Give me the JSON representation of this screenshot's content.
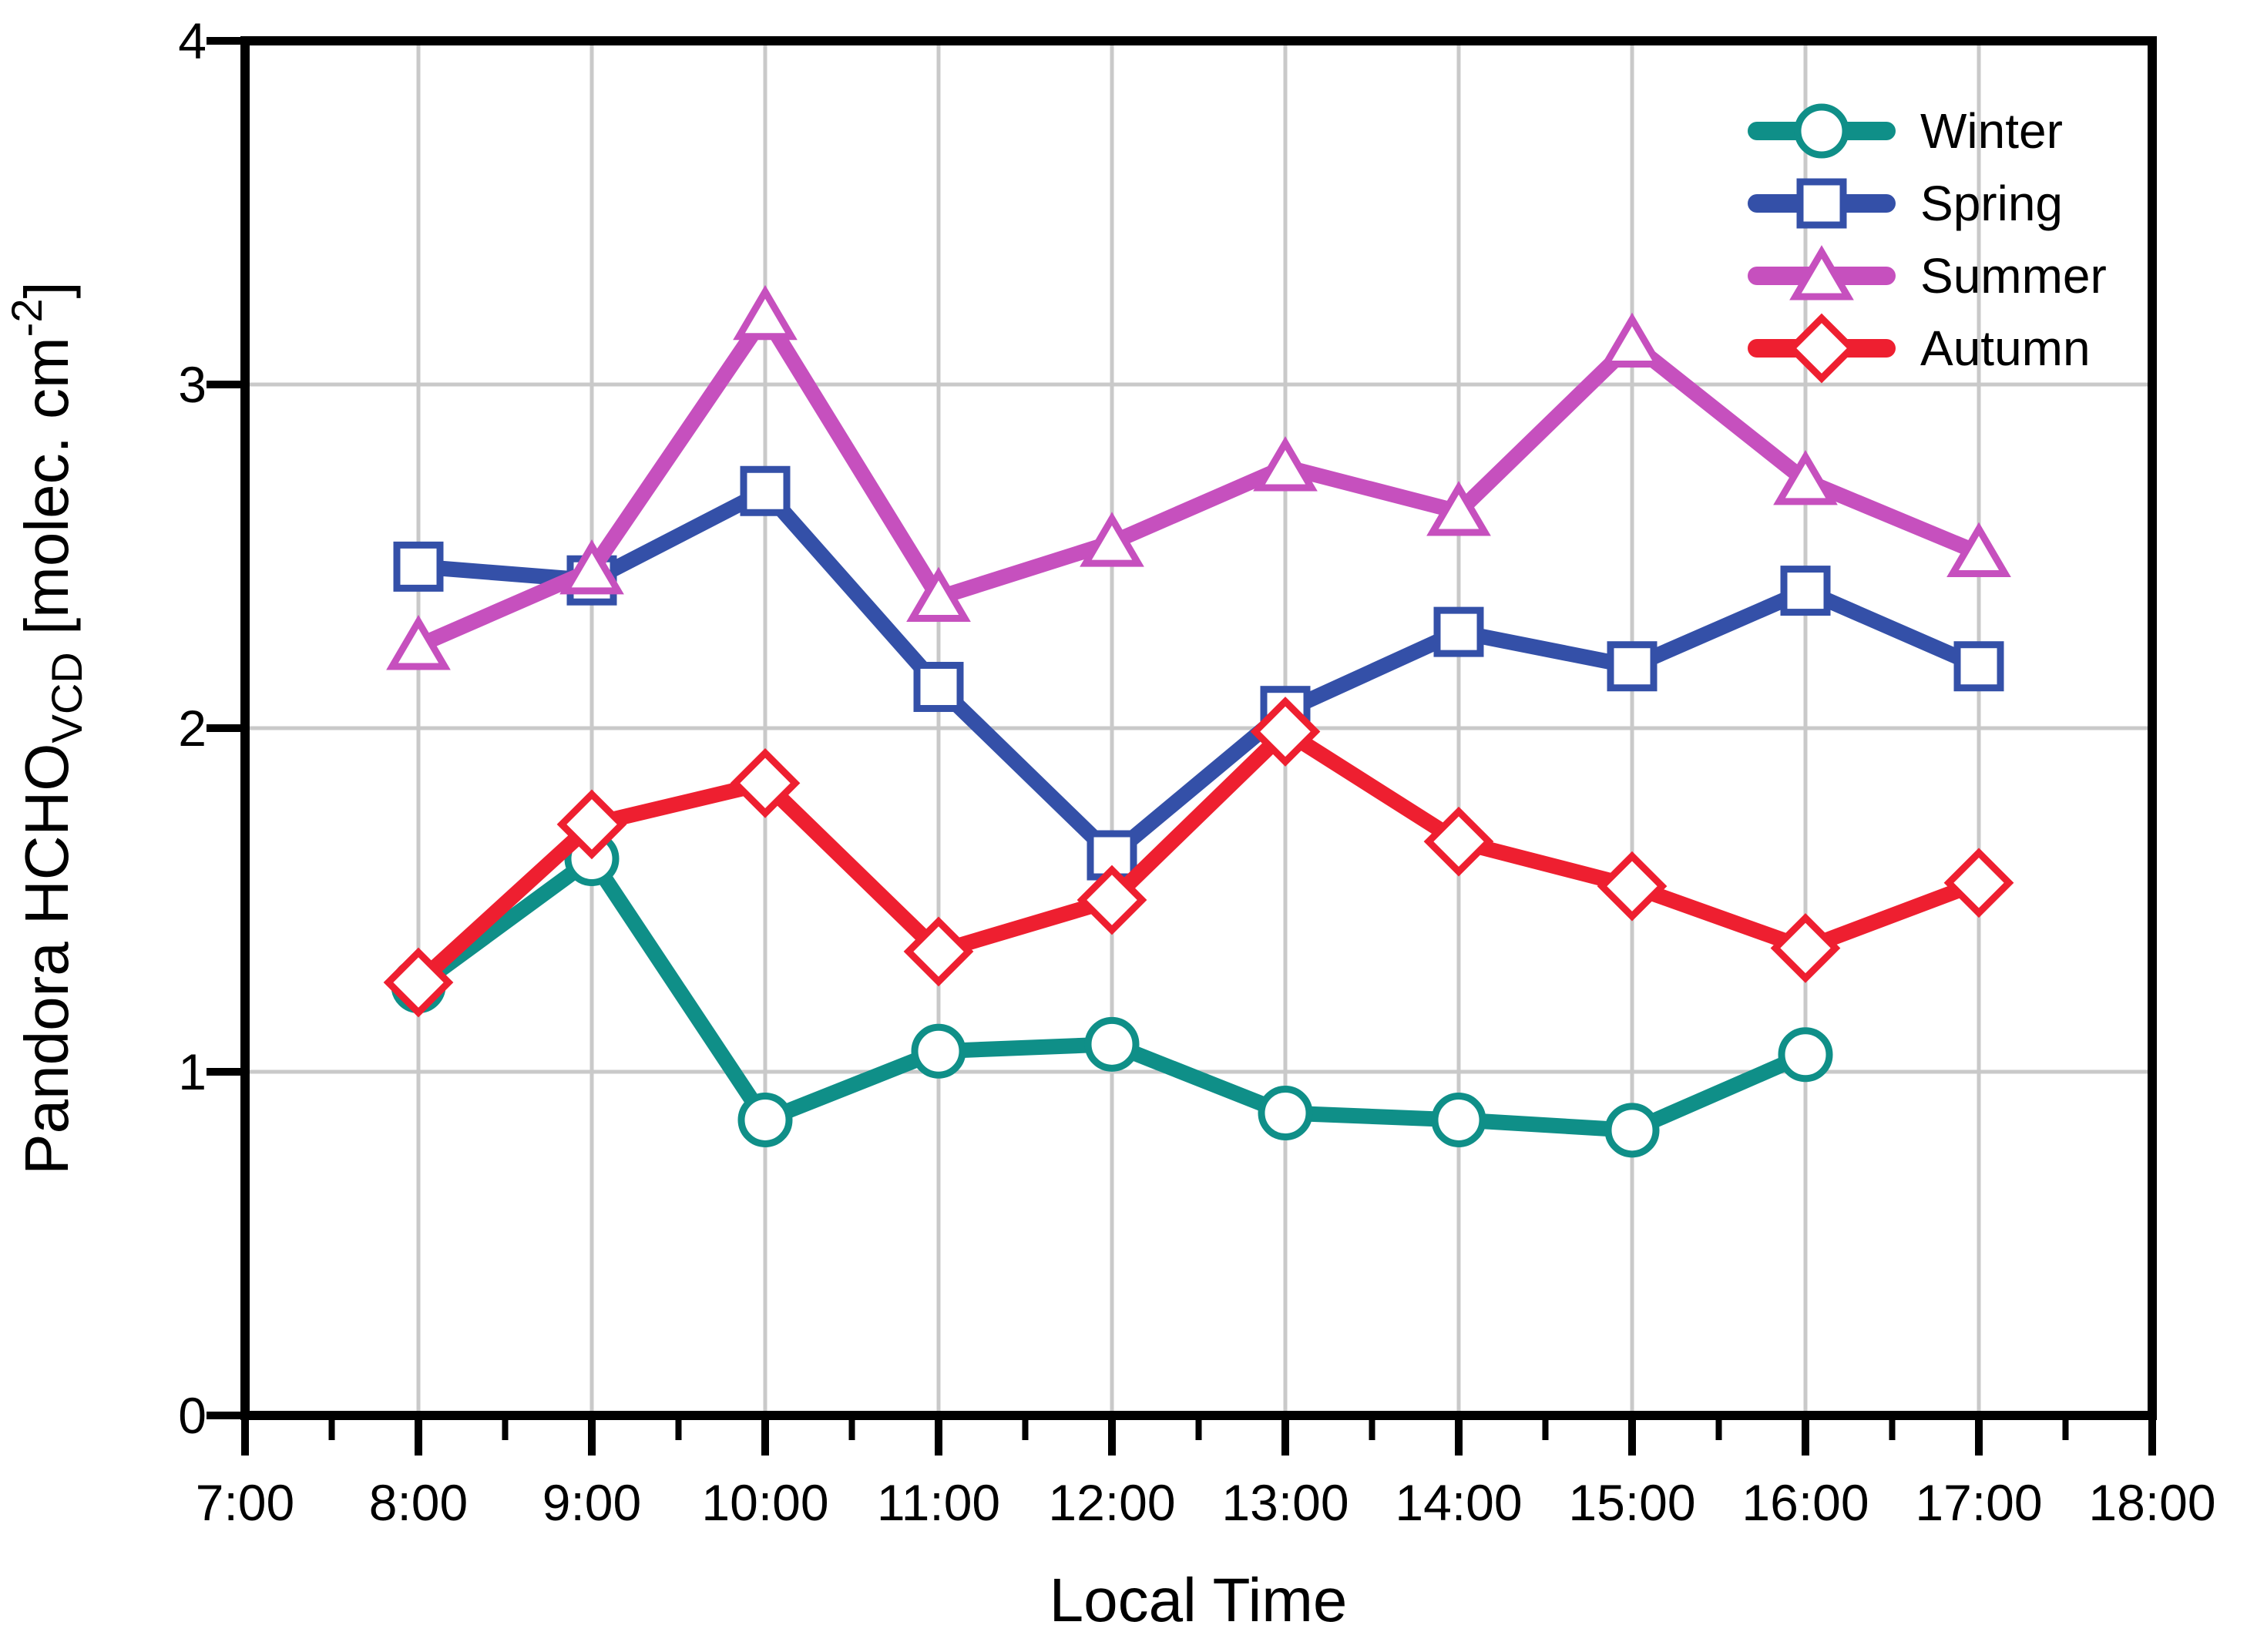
{
  "figure": {
    "background": "#ffffff"
  },
  "chart_data": {
    "type": "line",
    "title": "",
    "xlabel": "Local Time",
    "ylabel": "Pandora HCHO_VCD [molec. cm^-2]",
    "ylabel_rich": {
      "main": "Pandora HCHO",
      "sub": "VCD",
      "mid": " [molec. cm",
      "sup": "-2",
      "end": "]"
    },
    "x_axis": {
      "min": 7,
      "max": 18,
      "major_ticks": [
        7,
        8,
        9,
        10,
        11,
        12,
        13,
        14,
        15,
        16,
        17,
        18
      ],
      "tick_labels": [
        "7:00",
        "8:00",
        "9:00",
        "10:00",
        "11:00",
        "12:00",
        "13:00",
        "14:00",
        "15:00",
        "16:00",
        "17:00",
        "18:00"
      ],
      "minor_ticks": [
        7.5,
        8.5,
        9.5,
        10.5,
        11.5,
        12.5,
        13.5,
        14.5,
        15.5,
        16.5,
        17.5
      ]
    },
    "y_axis": {
      "min": 0,
      "max": 4,
      "ticks": [
        0,
        1,
        2,
        3,
        4
      ],
      "tick_labels": [
        "0",
        "1",
        "2",
        "3",
        "4"
      ]
    },
    "grid": {
      "show": true,
      "color": "#c9c9c9",
      "x_hours": [
        8,
        9,
        10,
        11,
        12,
        13,
        14,
        15,
        16,
        17
      ],
      "y_values": [
        1,
        2,
        3
      ]
    },
    "series": [
      {
        "name": "Winter",
        "color": "#0F8F88",
        "marker": "circle",
        "x": [
          8,
          9,
          10,
          11,
          12,
          13,
          14,
          15,
          16
        ],
        "values": [
          1.25,
          1.62,
          0.86,
          1.06,
          1.08,
          0.88,
          0.86,
          0.83,
          1.05
        ]
      },
      {
        "name": "Spring",
        "color": "#3450A8",
        "marker": "square",
        "x": [
          8,
          9,
          10,
          11,
          12,
          13,
          14,
          15,
          16,
          17
        ],
        "values": [
          2.47,
          2.43,
          2.69,
          2.12,
          1.63,
          2.05,
          2.28,
          2.18,
          2.4,
          2.18
        ]
      },
      {
        "name": "Summer",
        "color": "#C650BE",
        "marker": "triangle",
        "x": [
          8,
          9,
          10,
          11,
          12,
          13,
          14,
          15,
          16,
          17
        ],
        "values": [
          2.24,
          2.46,
          3.2,
          2.38,
          2.54,
          2.76,
          2.63,
          3.12,
          2.72,
          2.51
        ]
      },
      {
        "name": "Autumn",
        "color": "#EE1F30",
        "marker": "diamond",
        "x": [
          8,
          9,
          10,
          11,
          12,
          13,
          14,
          15,
          16,
          17
        ],
        "values": [
          1.26,
          1.72,
          1.84,
          1.35,
          1.5,
          1.99,
          1.67,
          1.54,
          1.36,
          1.55
        ]
      }
    ],
    "legend": {
      "position": "top-right",
      "items": [
        "Winter",
        "Spring",
        "Summer",
        "Autumn"
      ]
    }
  }
}
